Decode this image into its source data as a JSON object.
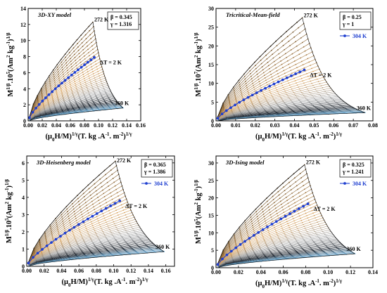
{
  "chart_data": [
    {
      "type": "scatter",
      "title": "3D-XY model",
      "params": [
        "β = 0.345",
        "γ = 1.316"
      ],
      "ylabel": {
        "base": "M",
        "sup1": "1/β",
        "mid": ".10",
        "sup2": "5",
        "rest": "(Am",
        "sup3": "2",
        "rest2": " kg",
        "sup4": "-1",
        "rest3": ")",
        "sup5": "1/β"
      },
      "xlabel": {
        "base": "(μ",
        "sub": "0",
        "rest": "H/M)",
        "sup": "1/γ",
        "rest2": "(T. kg .A",
        "sup2": "-1",
        "rest3": ". m",
        "sup3": "-2",
        "rest4": ")",
        "sup4": "1/γ"
      },
      "xlim": [
        0,
        0.16
      ],
      "ylim": [
        0,
        14
      ],
      "xticks": [
        "0.00",
        "0.02",
        "0.04",
        "0.06",
        "0.08",
        "0.10",
        "0.12",
        "0.14",
        "0.16"
      ],
      "xtick_values": [
        0,
        0.02,
        0.04,
        0.06,
        0.08,
        0.1,
        0.12,
        0.14,
        0.16
      ],
      "yticks": [
        "0",
        "2",
        "4",
        "6",
        "8",
        "10",
        "12",
        "14"
      ],
      "ytick_values": [
        0,
        2,
        4,
        6,
        8,
        10,
        12,
        14
      ],
      "temperature_top": "272 K",
      "temperature_bottom": "360 K",
      "step_label": "ΔT = 2 K",
      "legend_label": "",
      "top_curve": {
        "x_end": 0.092,
        "y_end": 12.3
      },
      "bottom_curve": {
        "x_end": 0.135,
        "y_end": 1.6
      },
      "highlight": {
        "x_end": 0.094,
        "y_end": 7.9
      },
      "n_isotherms": 45
    },
    {
      "type": "scatter",
      "title": "Tricritical-Mean-field",
      "params": [
        "β = 0.25",
        "γ = 1"
      ],
      "ylabel": {
        "base": "M",
        "sup1": "1/β",
        "mid": ".10",
        "sup2": "7",
        "rest": "(Am",
        "sup3": "2",
        "rest2": " kg",
        "sup4": "-1",
        "rest3": ")",
        "sup5": "1/β"
      },
      "xlabel": {
        "base": "(μ",
        "sub": "0",
        "rest": "H/M)",
        "sup": "1/γ",
        "rest2": "(T. kg .A",
        "sup2": "-1",
        "rest3": ". m",
        "sup3": "-2",
        "rest4": ")",
        "sup4": "1/γ"
      },
      "xlim": [
        0,
        0.08
      ],
      "ylim": [
        0,
        30
      ],
      "xticks": [
        "0.00",
        "0.01",
        "0.02",
        "0.03",
        "0.04",
        "0.05",
        "0.06",
        "0.07",
        "0.08"
      ],
      "xtick_values": [
        0,
        0.01,
        0.02,
        0.03,
        0.04,
        0.05,
        0.06,
        0.07,
        0.08
      ],
      "yticks": [
        "0",
        "5",
        "10",
        "15",
        "20",
        "25",
        "30"
      ],
      "ytick_values": [
        0,
        5,
        10,
        15,
        20,
        25,
        30
      ],
      "temperature_top": "272 K",
      "temperature_bottom": "360 K",
      "step_label": "ΔT = 2 K",
      "legend_label": "304 K",
      "top_curve": {
        "x_end": 0.044,
        "y_end": 27.5
      },
      "bottom_curve": {
        "x_end": 0.076,
        "y_end": 2.2
      },
      "highlight": {
        "x_end": 0.045,
        "y_end": 13.6
      },
      "n_isotherms": 45
    },
    {
      "type": "scatter",
      "title": "3D-Heisenberg model",
      "params": [
        "β = 0.365",
        "γ = 1.386"
      ],
      "ylabel": {
        "base": "M",
        "sup1": "1/β",
        "mid": ".10",
        "sup2": "5",
        "rest": "(Am",
        "sup3": "2",
        "rest2": " kg",
        "sup4": "-1",
        "rest3": ")",
        "sup5": "1/β"
      },
      "xlabel": {
        "base": "(μ",
        "sub": "0",
        "rest": "H/M)",
        "sup": "1/γ",
        "rest2": "(T. kg .A",
        "sup2": "-1",
        "rest3": ". m",
        "sup3": "-2",
        "rest4": ")",
        "sup4": "1/γ"
      },
      "xlim": [
        0,
        0.17
      ],
      "ylim": [
        0,
        6.4
      ],
      "xticks": [
        "0.00",
        "0.02",
        "0.04",
        "0.06",
        "0.08",
        "0.10",
        "0.12",
        "0.14",
        "0.16"
      ],
      "xtick_values": [
        0,
        0.02,
        0.04,
        0.06,
        0.08,
        0.1,
        0.12,
        0.14,
        0.16
      ],
      "yticks": [
        "0",
        "1",
        "2",
        "3",
        "4",
        "5",
        "6"
      ],
      "ytick_values": [
        0,
        1,
        2,
        3,
        4,
        5,
        6
      ],
      "temperature_top": "272 K",
      "temperature_bottom": "360 K",
      "step_label": "ΔT = 2 K",
      "legend_label": "304 K",
      "top_curve": {
        "x_end": 0.102,
        "y_end": 6.1
      },
      "bottom_curve": {
        "x_end": 0.158,
        "y_end": 0.85
      },
      "highlight": {
        "x_end": 0.107,
        "y_end": 3.8
      },
      "n_isotherms": 45
    },
    {
      "type": "scatter",
      "title": "3D-Ising model",
      "params": [
        "β = 0.325",
        "γ = 1.241"
      ],
      "ylabel": {
        "base": "M",
        "sup1": "1/β",
        "mid": ".10",
        "sup2": "5",
        "rest": "(Am",
        "sup3": "2",
        "rest2": " kg",
        "sup4": "-1",
        "rest3": ")",
        "sup5": "1/β"
      },
      "xlabel": {
        "base": "(μ",
        "sub": "0",
        "rest": "H/M)",
        "sup": "1/γ",
        "rest2": "(T. kg .A",
        "sup2": "-1",
        "rest3": ". m",
        "sup3": "-2",
        "rest4": ")",
        "sup4": "1/γ"
      },
      "xlim": [
        0,
        0.14
      ],
      "ylim": [
        0,
        32
      ],
      "xticks": [
        "0.00",
        "0.02",
        "0.04",
        "0.06",
        "0.08",
        "0.10",
        "0.12",
        "0.14"
      ],
      "xtick_values": [
        0,
        0.02,
        0.04,
        0.06,
        0.08,
        0.1,
        0.12,
        0.14
      ],
      "yticks": [
        "0",
        "5",
        "10",
        "15",
        "20",
        "25",
        "30"
      ],
      "ytick_values": [
        0,
        5,
        10,
        15,
        20,
        25,
        30
      ],
      "temperature_top": "272 K",
      "temperature_bottom": "360 K",
      "step_label": "ΔT = 2 K",
      "legend_label": "304 K",
      "top_curve": {
        "x_end": 0.079,
        "y_end": 29.5
      },
      "bottom_curve": {
        "x_end": 0.124,
        "y_end": 4.0
      },
      "highlight": {
        "x_end": 0.082,
        "y_end": 18.3
      },
      "n_isotherms": 45
    }
  ],
  "colors": {
    "axis": "#000000",
    "highlight": "#1f3fd0",
    "warm_dark": "#6b4a1f",
    "warm_light": "#d9a15a",
    "mid_gray": "#9a9a9a",
    "cool_dark": "#1e2630",
    "cool_light": "#7ec3f0"
  }
}
